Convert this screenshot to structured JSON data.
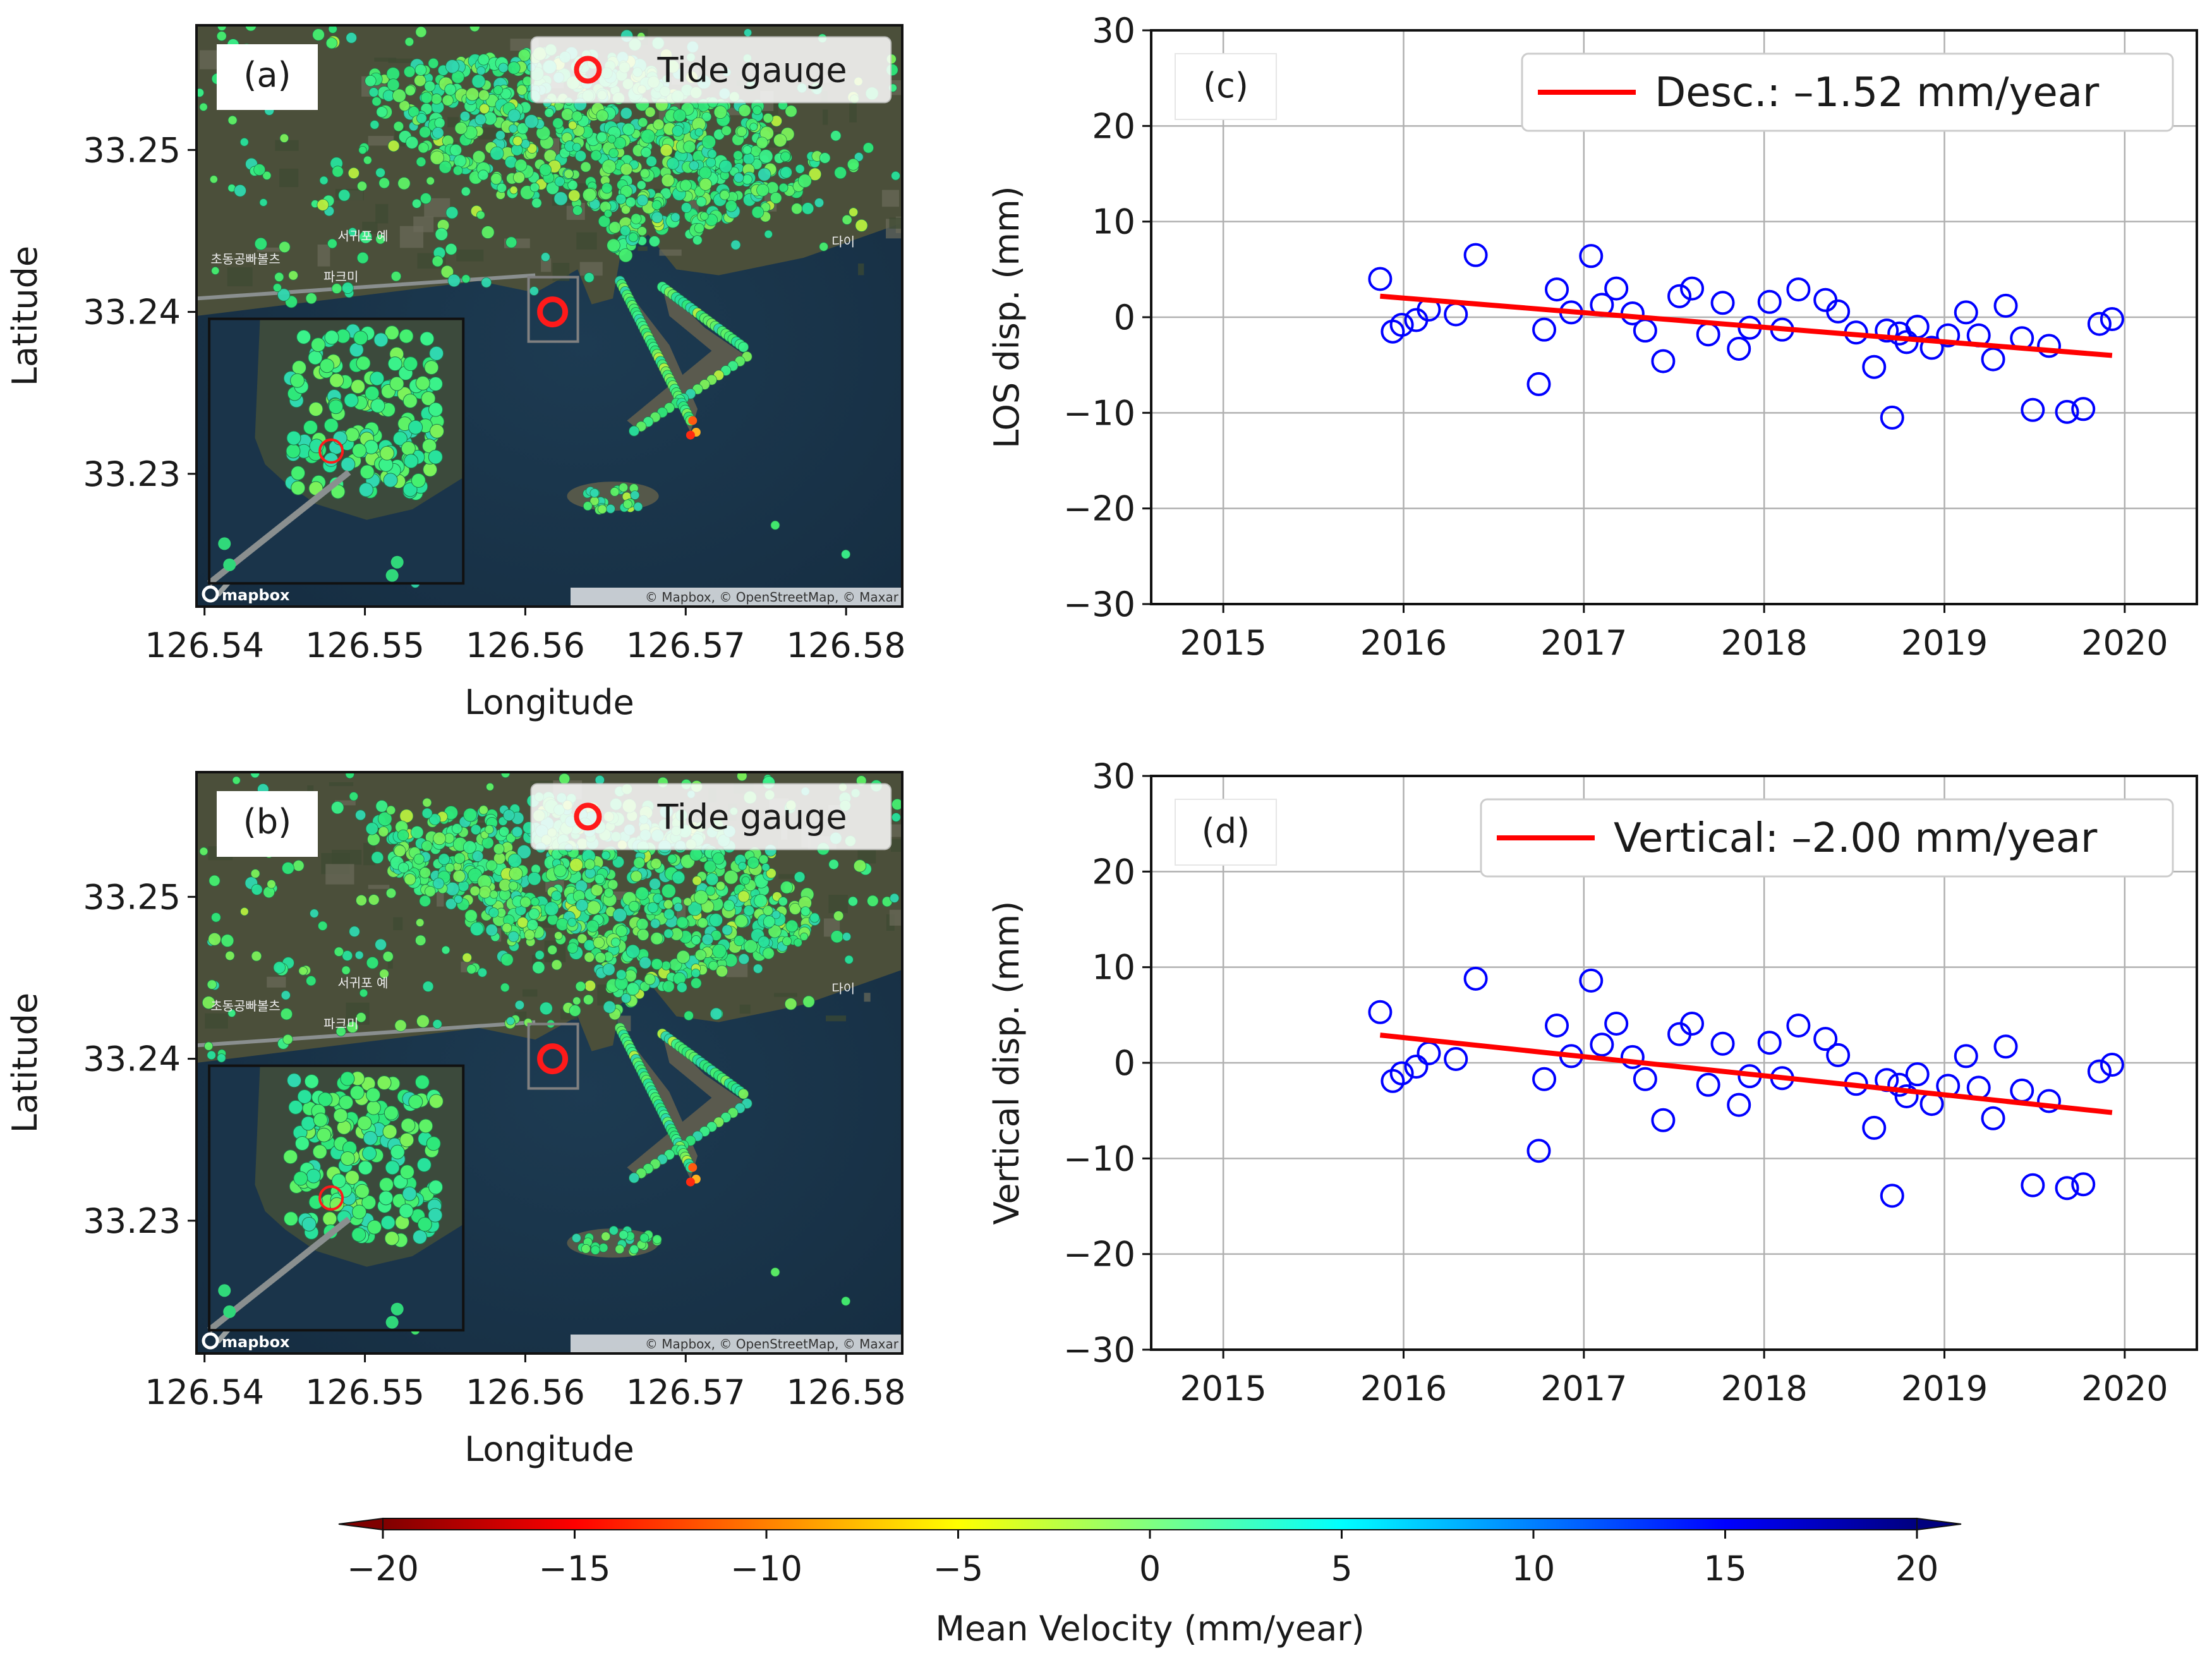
{
  "chart_data": [
    {
      "type": "map",
      "panel_label": "(a)",
      "xlabel": "Longitude",
      "ylabel": "Latitude",
      "xlim": [
        126.5395,
        126.5835
      ],
      "ylim": [
        33.2218,
        33.2577
      ],
      "xticks": [
        126.54,
        126.55,
        126.56,
        126.57,
        126.58
      ],
      "yticks": [
        33.23,
        33.24,
        33.25
      ],
      "xtick_labels": [
        "126.54",
        "126.55",
        "126.56",
        "126.57",
        "126.58"
      ],
      "ytick_labels": [
        "33.23",
        "33.24",
        "33.25"
      ],
      "legend": [
        "Tide gauge"
      ],
      "tide_gauge": {
        "lon": 126.5617,
        "lat": 33.24
      },
      "attribution": "© Mapbox, © OpenStreetMap, © Maxar",
      "logo_text": "mapbox",
      "place_labels": [
        "서귀포 예",
        "초동공빠볼츠",
        "파크미",
        "다이"
      ]
    },
    {
      "type": "map",
      "panel_label": "(b)",
      "xlabel": "Longitude",
      "ylabel": "Latitude",
      "xlim": [
        126.5395,
        126.5835
      ],
      "ylim": [
        33.2218,
        33.2577
      ],
      "xticks": [
        126.54,
        126.55,
        126.56,
        126.57,
        126.58
      ],
      "yticks": [
        33.23,
        33.24,
        33.25
      ],
      "xtick_labels": [
        "126.54",
        "126.55",
        "126.56",
        "126.57",
        "126.58"
      ],
      "ytick_labels": [
        "33.23",
        "33.24",
        "33.25"
      ],
      "legend": [
        "Tide gauge"
      ],
      "tide_gauge": {
        "lon": 126.5617,
        "lat": 33.24
      },
      "attribution": "© Mapbox, © OpenStreetMap, © Maxar",
      "logo_text": "mapbox",
      "place_labels": [
        "서귀포 예",
        "초동공빠볼츠",
        "파크미",
        "다이"
      ]
    },
    {
      "type": "scatter",
      "panel_label": "(c)",
      "xlabel": "",
      "ylabel": "LOS disp. (mm)",
      "xlim": [
        2014.6,
        2020.4
      ],
      "ylim": [
        -30,
        30
      ],
      "xticks": [
        2015,
        2016,
        2017,
        2018,
        2019,
        2020
      ],
      "yticks": [
        -30,
        -20,
        -10,
        0,
        10,
        20,
        30
      ],
      "xtick_labels": [
        "2015",
        "2016",
        "2017",
        "2018",
        "2019",
        "2020"
      ],
      "ytick_labels": [
        "−30",
        "−20",
        "−10",
        "0",
        "10",
        "20",
        "30"
      ],
      "grid": true,
      "legend": [
        "Desc.: –1.52 mm/year"
      ],
      "trend": {
        "x": [
          2015.87,
          2019.93
        ],
        "y": [
          2.2,
          -4.0
        ]
      },
      "x": [
        2015.87,
        2015.94,
        2015.99,
        2016.07,
        2016.14,
        2016.29,
        2016.4,
        2016.75,
        2016.78,
        2016.85,
        2016.93,
        2017.04,
        2017.1,
        2017.18,
        2017.27,
        2017.34,
        2017.44,
        2017.53,
        2017.6,
        2017.69,
        2017.77,
        2017.86,
        2017.92,
        2018.03,
        2018.1,
        2018.19,
        2018.34,
        2018.41,
        2018.51,
        2018.61,
        2018.68,
        2018.71,
        2018.75,
        2018.79,
        2018.85,
        2018.93,
        2019.02,
        2019.12,
        2019.19,
        2019.27,
        2019.34,
        2019.43,
        2019.49,
        2019.58,
        2019.68,
        2019.77,
        2019.86,
        2019.93
      ],
      "y": [
        4.0,
        -1.5,
        -0.8,
        -0.3,
        0.8,
        0.3,
        6.5,
        -7.0,
        -1.3,
        2.9,
        0.5,
        6.4,
        1.3,
        3.0,
        0.4,
        -1.4,
        -4.6,
        2.2,
        3.0,
        -1.8,
        1.5,
        -3.3,
        -1.1,
        1.6,
        -1.3,
        2.9,
        1.8,
        0.6,
        -1.6,
        -5.2,
        -1.4,
        -10.5,
        -1.7,
        -2.6,
        -1.0,
        -3.2,
        -1.9,
        0.5,
        -1.9,
        -4.4,
        1.2,
        -2.2,
        -9.7,
        -3.0,
        -9.9,
        -9.6,
        -0.7,
        -0.2
      ]
    },
    {
      "type": "scatter",
      "panel_label": "(d)",
      "xlabel": "",
      "ylabel": "Vertical disp. (mm)",
      "xlim": [
        2014.6,
        2020.4
      ],
      "ylim": [
        -30,
        30
      ],
      "xticks": [
        2015,
        2016,
        2017,
        2018,
        2019,
        2020
      ],
      "yticks": [
        -30,
        -20,
        -10,
        0,
        10,
        20,
        30
      ],
      "xtick_labels": [
        "2015",
        "2016",
        "2017",
        "2018",
        "2019",
        "2020"
      ],
      "ytick_labels": [
        "−30",
        "−20",
        "−10",
        "0",
        "10",
        "20",
        "30"
      ],
      "grid": true,
      "legend": [
        "Vertical: –2.00 mm/year"
      ],
      "trend": {
        "x": [
          2015.87,
          2019.93
        ],
        "y": [
          2.9,
          -5.2
        ]
      },
      "x": [
        2015.87,
        2015.94,
        2015.99,
        2016.07,
        2016.14,
        2016.29,
        2016.4,
        2016.75,
        2016.78,
        2016.85,
        2016.93,
        2017.04,
        2017.1,
        2017.18,
        2017.27,
        2017.34,
        2017.44,
        2017.53,
        2017.6,
        2017.69,
        2017.77,
        2017.86,
        2017.92,
        2018.03,
        2018.1,
        2018.19,
        2018.34,
        2018.41,
        2018.51,
        2018.61,
        2018.68,
        2018.71,
        2018.75,
        2018.79,
        2018.85,
        2018.93,
        2019.02,
        2019.12,
        2019.19,
        2019.27,
        2019.34,
        2019.43,
        2019.49,
        2019.58,
        2019.68,
        2019.77,
        2019.86,
        2019.93
      ],
      "y": [
        5.3,
        -1.9,
        -1.1,
        -0.4,
        1.0,
        0.4,
        8.8,
        -9.2,
        -1.7,
        3.9,
        0.7,
        8.6,
        1.9,
        4.1,
        0.6,
        -1.7,
        -6.0,
        3.0,
        4.1,
        -2.3,
        2.0,
        -4.4,
        -1.4,
        2.1,
        -1.6,
        3.9,
        2.5,
        0.8,
        -2.2,
        -6.8,
        -1.8,
        -13.9,
        -2.3,
        -3.5,
        -1.2,
        -4.3,
        -2.4,
        0.7,
        -2.6,
        -5.8,
        1.7,
        -2.9,
        -12.8,
        -4.0,
        -13.1,
        -12.7,
        -0.9,
        -0.2
      ]
    },
    {
      "type": "colorbar",
      "label": "Mean Velocity (mm/year)",
      "range": [
        -20,
        20
      ],
      "ticks": [
        -20,
        -15,
        -10,
        -5,
        0,
        5,
        10,
        15,
        20
      ],
      "tick_labels": [
        "−20",
        "−15",
        "−10",
        "−5",
        "0",
        "5",
        "10",
        "15",
        "20"
      ],
      "colormap": "jet_r",
      "colors": [
        "#7f0000",
        "#ff0000",
        "#ff8000",
        "#ffff00",
        "#80ff80",
        "#00ffff",
        "#0080ff",
        "#0000ff",
        "#00007f"
      ]
    }
  ]
}
